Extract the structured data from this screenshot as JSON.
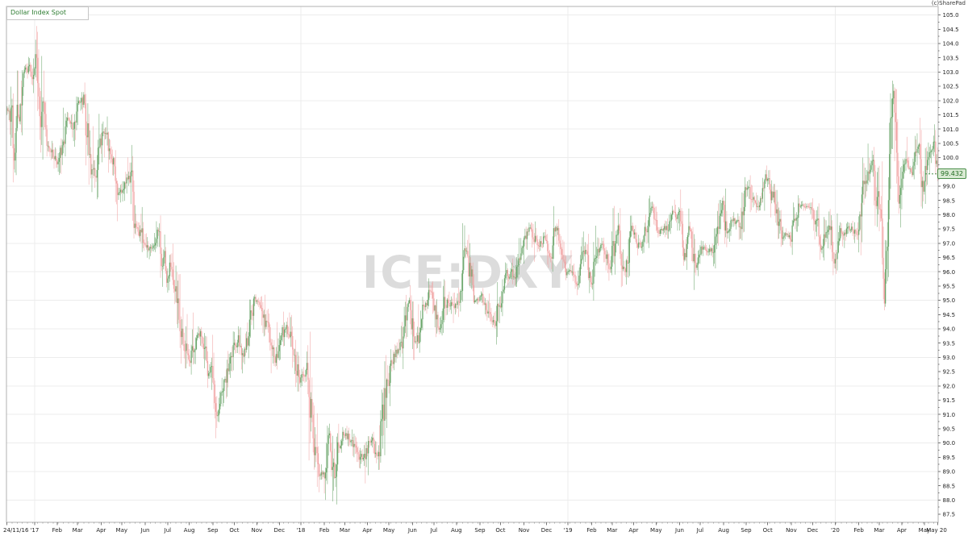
{
  "header": {
    "title": "Dollar Index Spot",
    "copyright": "(c)SharePad"
  },
  "chart_data": {
    "type": "candlestick",
    "title": "Dollar Index Spot",
    "symbol_watermark": "ICE:DXY",
    "last_price": 99.432,
    "last_price_label": "99.432",
    "seed": 20200520,
    "colors": {
      "up": "#5f9f5f",
      "down": "#f09c9c",
      "grid": "#ececec",
      "border": "#b0b0b0",
      "tick": "#777777",
      "axis_text": "#222222",
      "watermark": "#dcdcdc",
      "last_price_line": "#4a8f4a"
    },
    "y_axis": {
      "min": 87.22,
      "max": 105.3,
      "label_min": 87.5,
      "label_max": 105.0,
      "label_step": 0.5,
      "grid_step": 1.0
    },
    "x_axis": {
      "start_date": "2016-11-24",
      "end_date": "2020-05-20",
      "labels": [
        {
          "label": "24/11/16",
          "date": "2016-11-24",
          "start": true
        },
        {
          "label": "'17",
          "date": "2017-01-02",
          "year": true
        },
        {
          "label": "Feb",
          "date": "2017-02-01"
        },
        {
          "label": "Mar",
          "date": "2017-03-01"
        },
        {
          "label": "Apr",
          "date": "2017-04-03"
        },
        {
          "label": "May",
          "date": "2017-05-01"
        },
        {
          "label": "Jun",
          "date": "2017-06-01"
        },
        {
          "label": "Jul",
          "date": "2017-07-03"
        },
        {
          "label": "Aug",
          "date": "2017-08-01"
        },
        {
          "label": "Sep",
          "date": "2017-09-01"
        },
        {
          "label": "Oct",
          "date": "2017-10-02"
        },
        {
          "label": "Nov",
          "date": "2017-11-01"
        },
        {
          "label": "Dec",
          "date": "2017-12-01"
        },
        {
          "label": "'18",
          "date": "2018-01-01",
          "year": true
        },
        {
          "label": "Feb",
          "date": "2018-02-01"
        },
        {
          "label": "Mar",
          "date": "2018-03-01"
        },
        {
          "label": "Apr",
          "date": "2018-04-02"
        },
        {
          "label": "May",
          "date": "2018-05-01"
        },
        {
          "label": "Jun",
          "date": "2018-06-01"
        },
        {
          "label": "Jul",
          "date": "2018-07-02"
        },
        {
          "label": "Aug",
          "date": "2018-08-01"
        },
        {
          "label": "Sep",
          "date": "2018-09-03"
        },
        {
          "label": "Oct",
          "date": "2018-10-01"
        },
        {
          "label": "Nov",
          "date": "2018-11-01"
        },
        {
          "label": "Dec",
          "date": "2018-12-03"
        },
        {
          "label": "'19",
          "date": "2019-01-01",
          "year": true
        },
        {
          "label": "Feb",
          "date": "2019-02-01"
        },
        {
          "label": "Mar",
          "date": "2019-03-01"
        },
        {
          "label": "Apr",
          "date": "2019-04-01"
        },
        {
          "label": "May",
          "date": "2019-05-01"
        },
        {
          "label": "Jun",
          "date": "2019-06-03"
        },
        {
          "label": "Jul",
          "date": "2019-07-01"
        },
        {
          "label": "Aug",
          "date": "2019-08-01"
        },
        {
          "label": "Sep",
          "date": "2019-09-02"
        },
        {
          "label": "Oct",
          "date": "2019-10-01"
        },
        {
          "label": "Nov",
          "date": "2019-11-01"
        },
        {
          "label": "Dec",
          "date": "2019-12-02"
        },
        {
          "label": "'20",
          "date": "2020-01-01",
          "year": true
        },
        {
          "label": "Feb",
          "date": "2020-02-03"
        },
        {
          "label": "Mar",
          "date": "2020-03-02"
        },
        {
          "label": "Apr",
          "date": "2020-04-01"
        },
        {
          "label": "May",
          "date": "2020-05-01"
        },
        {
          "label": "May 20",
          "date": "2020-05-20",
          "end": true
        }
      ]
    },
    "anchors": [
      [
        "2016-11-24",
        101.7
      ],
      [
        "2016-11-30",
        101.5
      ],
      [
        "2016-12-05",
        100.1
      ],
      [
        "2016-12-09",
        101.6
      ],
      [
        "2016-12-15",
        103.1
      ],
      [
        "2016-12-20",
        103.25
      ],
      [
        "2016-12-28",
        102.9
      ],
      [
        "2017-01-03",
        103.4
      ],
      [
        "2017-01-06",
        102.2
      ],
      [
        "2017-01-12",
        101.2
      ],
      [
        "2017-01-17",
        100.3
      ],
      [
        "2017-01-25",
        100.1
      ],
      [
        "2017-02-02",
        99.75
      ],
      [
        "2017-02-09",
        100.65
      ],
      [
        "2017-02-15",
        101.2
      ],
      [
        "2017-02-22",
        101.2
      ],
      [
        "2017-03-02",
        102.1
      ],
      [
        "2017-03-09",
        101.9
      ],
      [
        "2017-03-15",
        100.7
      ],
      [
        "2017-03-21",
        99.75
      ],
      [
        "2017-03-27",
        99.1
      ],
      [
        "2017-04-03",
        100.5
      ],
      [
        "2017-04-10",
        100.95
      ],
      [
        "2017-04-13",
        100.35
      ],
      [
        "2017-04-21",
        99.85
      ],
      [
        "2017-04-24",
        99.0
      ],
      [
        "2017-05-01",
        98.95
      ],
      [
        "2017-05-11",
        99.6
      ],
      [
        "2017-05-17",
        97.9
      ],
      [
        "2017-05-26",
        97.35
      ],
      [
        "2017-06-06",
        96.7
      ],
      [
        "2017-06-14",
        96.95
      ],
      [
        "2017-06-20",
        97.5
      ],
      [
        "2017-06-27",
        96.35
      ],
      [
        "2017-06-30",
        95.65
      ],
      [
        "2017-07-05",
        96.25
      ],
      [
        "2017-07-12",
        95.75
      ],
      [
        "2017-07-20",
        94.2
      ],
      [
        "2017-07-26",
        93.45
      ],
      [
        "2017-08-02",
        92.85
      ],
      [
        "2017-08-09",
        93.65
      ],
      [
        "2017-08-16",
        93.85
      ],
      [
        "2017-08-25",
        92.5
      ],
      [
        "2017-08-31",
        92.65
      ],
      [
        "2017-09-08",
        91.35
      ],
      [
        "2017-09-14",
        92.1
      ],
      [
        "2017-09-20",
        92.45
      ],
      [
        "2017-09-28",
        93.35
      ],
      [
        "2017-10-06",
        93.8
      ],
      [
        "2017-10-13",
        93.05
      ],
      [
        "2017-10-20",
        93.65
      ],
      [
        "2017-10-27",
        94.9
      ],
      [
        "2017-11-07",
        94.95
      ],
      [
        "2017-11-15",
        93.85
      ],
      [
        "2017-11-27",
        92.85
      ],
      [
        "2017-12-08",
        93.9
      ],
      [
        "2017-12-12",
        94.1
      ],
      [
        "2017-12-20",
        93.3
      ],
      [
        "2017-12-29",
        92.25
      ],
      [
        "2018-01-09",
        92.55
      ],
      [
        "2018-01-17",
        90.55
      ],
      [
        "2018-01-25",
        88.85
      ],
      [
        "2018-02-01",
        89.05
      ],
      [
        "2018-02-08",
        90.25
      ],
      [
        "2018-02-16",
        88.6
      ],
      [
        "2018-02-21",
        89.95
      ],
      [
        "2018-03-01",
        90.35
      ],
      [
        "2018-03-08",
        90.15
      ],
      [
        "2018-03-15",
        89.8
      ],
      [
        "2018-03-27",
        89.35
      ],
      [
        "2018-04-05",
        90.1
      ],
      [
        "2018-04-17",
        89.5
      ],
      [
        "2018-04-23",
        90.9
      ],
      [
        "2018-05-02",
        92.75
      ],
      [
        "2018-05-09",
        93.15
      ],
      [
        "2018-05-16",
        93.35
      ],
      [
        "2018-05-29",
        94.8
      ],
      [
        "2018-06-07",
        93.45
      ],
      [
        "2018-06-14",
        94.9
      ],
      [
        "2018-06-21",
        94.85
      ],
      [
        "2018-06-27",
        95.25
      ],
      [
        "2018-07-09",
        94.05
      ],
      [
        "2018-07-19",
        95.15
      ],
      [
        "2018-07-26",
        94.75
      ],
      [
        "2018-08-06",
        95.35
      ],
      [
        "2018-08-15",
        96.7
      ],
      [
        "2018-08-24",
        95.15
      ],
      [
        "2018-08-31",
        95.1
      ],
      [
        "2018-09-05",
        95.15
      ],
      [
        "2018-09-21",
        94.2
      ],
      [
        "2018-09-28",
        95.1
      ],
      [
        "2018-10-09",
        95.75
      ],
      [
        "2018-10-17",
        95.95
      ],
      [
        "2018-10-31",
        97.1
      ],
      [
        "2018-11-12",
        97.55
      ],
      [
        "2018-11-20",
        96.85
      ],
      [
        "2018-11-30",
        97.2
      ],
      [
        "2018-12-07",
        96.55
      ],
      [
        "2018-12-14",
        97.45
      ],
      [
        "2018-12-21",
        96.95
      ],
      [
        "2018-12-31",
        96.1
      ],
      [
        "2019-01-04",
        96.2
      ],
      [
        "2019-01-10",
        95.55
      ],
      [
        "2019-01-24",
        96.6
      ],
      [
        "2019-01-31",
        95.6
      ],
      [
        "2019-02-08",
        96.65
      ],
      [
        "2019-02-14",
        96.95
      ],
      [
        "2019-02-28",
        96.15
      ],
      [
        "2019-03-07",
        97.65
      ],
      [
        "2019-03-20",
        96.0
      ],
      [
        "2019-03-28",
        97.3
      ],
      [
        "2019-04-10",
        96.9
      ],
      [
        "2019-04-18",
        97.45
      ],
      [
        "2019-04-25",
        98.2
      ],
      [
        "2019-05-03",
        97.5
      ],
      [
        "2019-05-14",
        97.5
      ],
      [
        "2019-05-23",
        98.1
      ],
      [
        "2019-05-31",
        97.75
      ],
      [
        "2019-06-07",
        96.55
      ],
      [
        "2019-06-18",
        97.6
      ],
      [
        "2019-06-25",
        96.1
      ],
      [
        "2019-07-03",
        96.75
      ],
      [
        "2019-07-18",
        96.8
      ],
      [
        "2019-07-31",
        98.5
      ],
      [
        "2019-08-06",
        97.45
      ],
      [
        "2019-08-13",
        97.8
      ],
      [
        "2019-08-23",
        97.6
      ],
      [
        "2019-09-03",
        99.0
      ],
      [
        "2019-09-12",
        98.3
      ],
      [
        "2019-09-20",
        98.45
      ],
      [
        "2019-10-01",
        99.2
      ],
      [
        "2019-10-11",
        98.3
      ],
      [
        "2019-10-21",
        97.3
      ],
      [
        "2019-11-01",
        97.25
      ],
      [
        "2019-11-12",
        98.3
      ],
      [
        "2019-11-29",
        98.3
      ],
      [
        "2019-12-06",
        97.65
      ],
      [
        "2019-12-13",
        97.0
      ],
      [
        "2019-12-23",
        97.65
      ],
      [
        "2019-12-31",
        96.4
      ],
      [
        "2020-01-08",
        97.3
      ],
      [
        "2020-01-17",
        97.6
      ],
      [
        "2020-01-31",
        97.4
      ],
      [
        "2020-02-10",
        98.85
      ],
      [
        "2020-02-20",
        99.8
      ],
      [
        "2020-02-28",
        98.1
      ],
      [
        "2020-03-04",
        97.3
      ],
      [
        "2020-03-09",
        95.0
      ],
      [
        "2020-03-12",
        97.5
      ],
      [
        "2020-03-19",
        102.5
      ],
      [
        "2020-03-23",
        102.3
      ],
      [
        "2020-03-27",
        98.4
      ],
      [
        "2020-04-02",
        100.2
      ],
      [
        "2020-04-08",
        100.0
      ],
      [
        "2020-04-15",
        99.5
      ],
      [
        "2020-04-24",
        100.35
      ],
      [
        "2020-04-30",
        99.0
      ],
      [
        "2020-05-07",
        99.9
      ],
      [
        "2020-05-14",
        100.3
      ],
      [
        "2020-05-20",
        99.432
      ]
    ]
  }
}
